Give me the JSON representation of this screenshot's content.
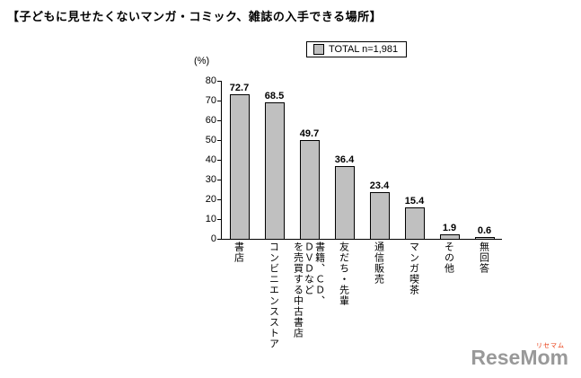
{
  "page": {
    "title": "【子どもに見せたくないマンガ・コミック、雑誌の入手できる場所】"
  },
  "legend": {
    "label": "TOTAL n=1,981",
    "swatch_color": "#c0c0c0"
  },
  "chart_data": {
    "type": "bar",
    "title": "子どもに見せたくないマンガ・コミック、雑誌の入手できる場所",
    "categories": [
      "書店",
      "コンビニエンスストア",
      "書籍、ＣＤ、ＤＶＤなどを売買する中古書店",
      "友だち・先輩",
      "通信販売",
      "マンガ喫茶",
      "その他",
      "無回答"
    ],
    "categories_display": [
      "書店",
      "コンビニエンスストア",
      "書籍、ＣＤ、\nＤＶＤなど\nを売買する中古書店",
      "友だち・先輩",
      "通信販売",
      "マンガ喫茶",
      "その他",
      "無回答"
    ],
    "values": [
      72.7,
      68.5,
      49.7,
      36.4,
      23.4,
      15.4,
      1.9,
      0.6
    ],
    "value_labels": [
      "72.7",
      "68.5",
      "49.7",
      "36.4",
      "23.4",
      "15.4",
      "1.9",
      "0.6"
    ],
    "xlabel": "",
    "ylabel": "(%)",
    "ylim": [
      0,
      80
    ],
    "yticks": [
      0,
      10,
      20,
      30,
      40,
      50,
      60,
      70,
      80
    ],
    "bar_color": "#c0c0c0",
    "bar_border_color": "#000000",
    "legend": "TOTAL n=1,981",
    "legend_position": "top",
    "grid": false
  },
  "logo": {
    "text_rese": "Rese",
    "text_mom": "Mom",
    "ruby": "リセマム",
    "text_color": "#999999",
    "ruby_color": "#e8380d"
  }
}
